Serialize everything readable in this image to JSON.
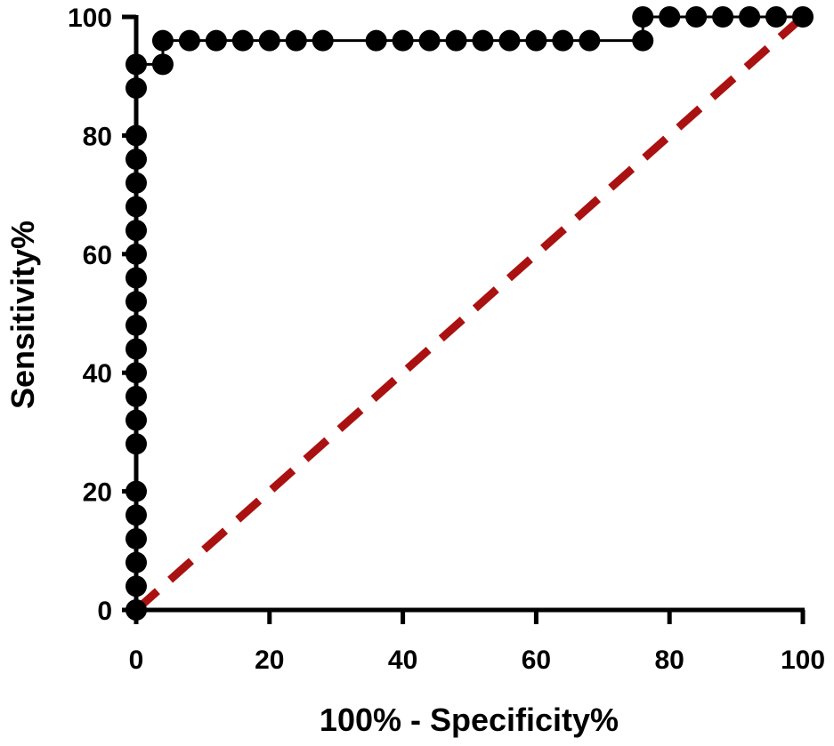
{
  "chart_data": {
    "type": "line",
    "title": "",
    "xlabel": "100% - Specificity%",
    "ylabel": "Sensitivity%",
    "xlim": [
      0,
      100
    ],
    "ylim": [
      0,
      100
    ],
    "x_ticks": [
      0,
      20,
      40,
      60,
      80,
      100
    ],
    "y_ticks": [
      0,
      20,
      40,
      60,
      80,
      100
    ],
    "x_tick_labels": [
      "0",
      "20",
      "40",
      "60",
      "80",
      "100"
    ],
    "y_tick_labels": [
      "0",
      "20",
      "40",
      "60",
      "80",
      "100"
    ],
    "grid": false,
    "legend": "none",
    "series": [
      {
        "style": "solid line with filled circle markers",
        "color": "#000000",
        "points": [
          [
            0,
            0
          ],
          [
            0,
            4
          ],
          [
            0,
            8
          ],
          [
            0,
            12
          ],
          [
            0,
            16
          ],
          [
            0,
            20
          ],
          [
            0,
            28
          ],
          [
            0,
            32
          ],
          [
            0,
            36
          ],
          [
            0,
            40
          ],
          [
            0,
            44
          ],
          [
            0,
            48
          ],
          [
            0,
            52
          ],
          [
            0,
            56
          ],
          [
            0,
            60
          ],
          [
            0,
            64
          ],
          [
            0,
            68
          ],
          [
            0,
            72
          ],
          [
            0,
            76
          ],
          [
            0,
            80
          ],
          [
            0,
            88
          ],
          [
            0,
            92
          ],
          [
            4,
            92
          ],
          [
            4,
            96
          ],
          [
            8,
            96
          ],
          [
            12,
            96
          ],
          [
            16,
            96
          ],
          [
            20,
            96
          ],
          [
            24,
            96
          ],
          [
            28,
            96
          ],
          [
            36,
            96
          ],
          [
            40,
            96
          ],
          [
            44,
            96
          ],
          [
            48,
            96
          ],
          [
            52,
            96
          ],
          [
            56,
            96
          ],
          [
            60,
            96
          ],
          [
            64,
            96
          ],
          [
            68,
            96
          ],
          [
            76,
            96
          ],
          [
            76,
            100
          ],
          [
            80,
            100
          ],
          [
            84,
            100
          ],
          [
            88,
            100
          ],
          [
            92,
            100
          ],
          [
            96,
            100
          ],
          [
            100,
            100
          ]
        ]
      },
      {
        "style": "dashed reference line",
        "color": "#aa1111",
        "points": [
          [
            0,
            0
          ],
          [
            100,
            100
          ]
        ]
      }
    ]
  }
}
